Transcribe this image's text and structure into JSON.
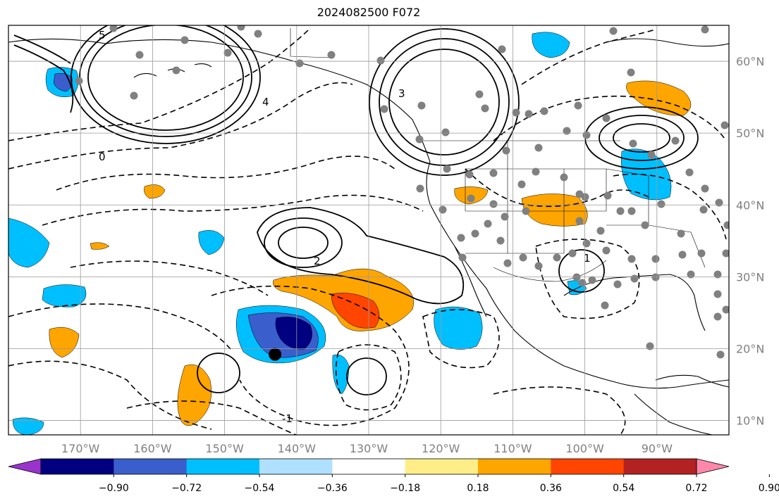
{
  "title": "2024082500 F072",
  "map": {
    "lon_ticks": [
      {
        "lon": -170,
        "label": "170°W"
      },
      {
        "lon": -160,
        "label": "160°W"
      },
      {
        "lon": -150,
        "label": "150°W"
      },
      {
        "lon": -140,
        "label": "140°W"
      },
      {
        "lon": -130,
        "label": "130°W"
      },
      {
        "lon": -120,
        "label": "120°W"
      },
      {
        "lon": -110,
        "label": "110°W"
      },
      {
        "lon": -100,
        "label": "100°W"
      },
      {
        "lon": -90,
        "label": "90°W"
      }
    ],
    "lat_ticks": [
      {
        "lat": 60,
        "label": "60°N"
      },
      {
        "lat": 50,
        "label": "50°N"
      },
      {
        "lat": 40,
        "label": "40°N"
      },
      {
        "lat": 30,
        "label": "30°N"
      },
      {
        "lat": 20,
        "label": "20°N"
      },
      {
        "lat": 10,
        "label": "10°N"
      }
    ],
    "extent": {
      "lon": [
        -180,
        -80
      ],
      "lat": [
        8,
        65
      ]
    },
    "contour_labels": [
      "5",
      "4",
      "3",
      "2",
      "1",
      "0",
      "-1"
    ],
    "point_marker": {
      "lon": -143,
      "lat": 19.2,
      "color": "#000000"
    },
    "station_color": "#808080"
  },
  "colorbar": {
    "colors": [
      "#9933cc",
      "#000080",
      "#3a5fcd",
      "#00bfff",
      "#b0e0ff",
      "#ffffff",
      "#ffee88",
      "#ffa500",
      "#ff4500",
      "#b22222",
      "#ff88aa"
    ],
    "tick_labels": [
      "−0.90",
      "−0.72",
      "−0.54",
      "−0.36",
      "−0.18",
      "0.18",
      "0.36",
      "0.54",
      "0.72",
      "0.90"
    ]
  }
}
